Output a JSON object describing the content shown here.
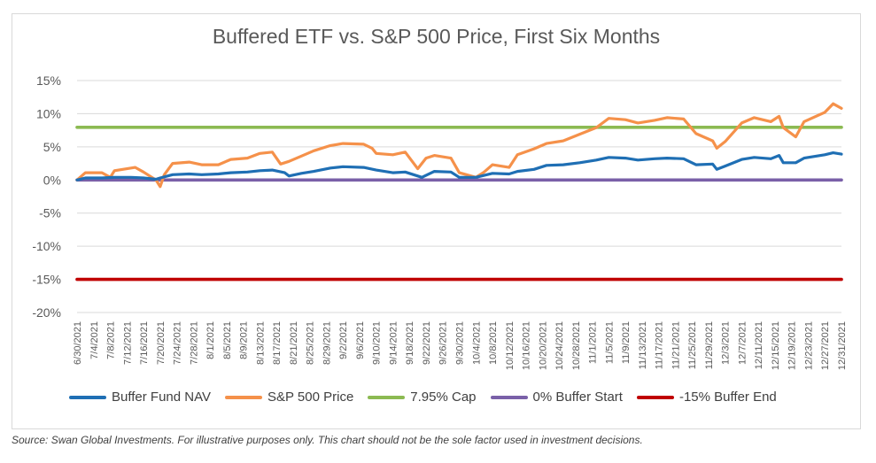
{
  "chart_data": {
    "type": "line",
    "title": "Buffered ETF vs. S&P 500 Price, First Six Months",
    "ylim": [
      -20,
      15
    ],
    "yticks": [
      "15%",
      "10%",
      "5%",
      "0%",
      "-5%",
      "-10%",
      "-15%",
      "-20%"
    ],
    "ytick_values": [
      15,
      10,
      5,
      0,
      -5,
      -10,
      -15,
      -20
    ],
    "x_start": "2021-06-30",
    "x_end": "2021-12-31",
    "xticks": [
      "6/30/2021",
      "7/4/2021",
      "7/8/2021",
      "7/12/2021",
      "7/16/2021",
      "7/20/2021",
      "7/24/2021",
      "7/28/2021",
      "8/1/2021",
      "8/5/2021",
      "8/9/2021",
      "8/13/2021",
      "8/17/2021",
      "8/21/2021",
      "8/25/2021",
      "8/29/2021",
      "9/2/2021",
      "9/6/2021",
      "9/10/2021",
      "9/14/2021",
      "9/18/2021",
      "9/22/2021",
      "9/26/2021",
      "9/30/2021",
      "10/4/2021",
      "10/8/2021",
      "10/12/2021",
      "10/16/2021",
      "10/20/2021",
      "10/24/2021",
      "10/28/2021",
      "11/1/2021",
      "11/5/2021",
      "11/9/2021",
      "11/13/2021",
      "11/17/2021",
      "11/21/2021",
      "11/25/2021",
      "11/29/2021",
      "12/3/2021",
      "12/7/2021",
      "12/11/2021",
      "12/15/2021",
      "12/19/2021",
      "12/23/2021",
      "12/27/2021",
      "12/31/2021"
    ],
    "grid": true,
    "legend_position": "bottom",
    "series": [
      {
        "name": "Buffer Fund NAV",
        "color": "#1f6fb4",
        "points": [
          [
            "2021-06-30",
            0
          ],
          [
            "2021-07-02",
            0.3
          ],
          [
            "2021-07-06",
            0.3
          ],
          [
            "2021-07-09",
            0.4
          ],
          [
            "2021-07-13",
            0.4
          ],
          [
            "2021-07-16",
            0.3
          ],
          [
            "2021-07-19",
            0.1
          ],
          [
            "2021-07-20",
            0.3
          ],
          [
            "2021-07-23",
            0.8
          ],
          [
            "2021-07-27",
            0.9
          ],
          [
            "2021-07-30",
            0.8
          ],
          [
            "2021-08-03",
            0.9
          ],
          [
            "2021-08-06",
            1.1
          ],
          [
            "2021-08-10",
            1.2
          ],
          [
            "2021-08-13",
            1.4
          ],
          [
            "2021-08-16",
            1.5
          ],
          [
            "2021-08-19",
            1.1
          ],
          [
            "2021-08-20",
            0.6
          ],
          [
            "2021-08-23",
            1.0
          ],
          [
            "2021-08-26",
            1.3
          ],
          [
            "2021-08-30",
            1.8
          ],
          [
            "2021-09-02",
            2.0
          ],
          [
            "2021-09-07",
            1.9
          ],
          [
            "2021-09-10",
            1.5
          ],
          [
            "2021-09-14",
            1.1
          ],
          [
            "2021-09-17",
            1.2
          ],
          [
            "2021-09-20",
            0.6
          ],
          [
            "2021-09-21",
            0.4
          ],
          [
            "2021-09-24",
            1.3
          ],
          [
            "2021-09-28",
            1.2
          ],
          [
            "2021-09-30",
            0.4
          ],
          [
            "2021-10-04",
            0.4
          ],
          [
            "2021-10-08",
            1.0
          ],
          [
            "2021-10-12",
            0.9
          ],
          [
            "2021-10-14",
            1.3
          ],
          [
            "2021-10-18",
            1.6
          ],
          [
            "2021-10-21",
            2.2
          ],
          [
            "2021-10-25",
            2.3
          ],
          [
            "2021-10-29",
            2.6
          ],
          [
            "2021-11-02",
            3.0
          ],
          [
            "2021-11-05",
            3.4
          ],
          [
            "2021-11-09",
            3.3
          ],
          [
            "2021-11-12",
            3.0
          ],
          [
            "2021-11-16",
            3.2
          ],
          [
            "2021-11-19",
            3.3
          ],
          [
            "2021-11-23",
            3.2
          ],
          [
            "2021-11-26",
            2.3
          ],
          [
            "2021-11-30",
            2.4
          ],
          [
            "2021-12-01",
            1.6
          ],
          [
            "2021-12-03",
            2.1
          ],
          [
            "2021-12-07",
            3.1
          ],
          [
            "2021-12-10",
            3.4
          ],
          [
            "2021-12-14",
            3.2
          ],
          [
            "2021-12-16",
            3.7
          ],
          [
            "2021-12-17",
            2.6
          ],
          [
            "2021-12-20",
            2.6
          ],
          [
            "2021-12-22",
            3.3
          ],
          [
            "2021-12-27",
            3.8
          ],
          [
            "2021-12-29",
            4.1
          ],
          [
            "2021-12-31",
            3.9
          ]
        ]
      },
      {
        "name": "S&P 500 Price",
        "color": "#f5914a",
        "points": [
          [
            "2021-06-30",
            0
          ],
          [
            "2021-07-02",
            1.1
          ],
          [
            "2021-07-06",
            1.1
          ],
          [
            "2021-07-08",
            0.4
          ],
          [
            "2021-07-09",
            1.4
          ],
          [
            "2021-07-12",
            1.7
          ],
          [
            "2021-07-14",
            1.9
          ],
          [
            "2021-07-16",
            1.2
          ],
          [
            "2021-07-19",
            0.0
          ],
          [
            "2021-07-20",
            -1.0
          ],
          [
            "2021-07-21",
            0.8
          ],
          [
            "2021-07-23",
            2.5
          ],
          [
            "2021-07-27",
            2.7
          ],
          [
            "2021-07-30",
            2.3
          ],
          [
            "2021-08-03",
            2.3
          ],
          [
            "2021-08-06",
            3.1
          ],
          [
            "2021-08-10",
            3.3
          ],
          [
            "2021-08-13",
            4.0
          ],
          [
            "2021-08-16",
            4.2
          ],
          [
            "2021-08-18",
            2.4
          ],
          [
            "2021-08-20",
            2.8
          ],
          [
            "2021-08-23",
            3.6
          ],
          [
            "2021-08-26",
            4.4
          ],
          [
            "2021-08-30",
            5.2
          ],
          [
            "2021-09-02",
            5.5
          ],
          [
            "2021-09-07",
            5.4
          ],
          [
            "2021-09-09",
            4.8
          ],
          [
            "2021-09-10",
            4.0
          ],
          [
            "2021-09-14",
            3.8
          ],
          [
            "2021-09-17",
            4.2
          ],
          [
            "2021-09-20",
            1.7
          ],
          [
            "2021-09-22",
            3.3
          ],
          [
            "2021-09-24",
            3.7
          ],
          [
            "2021-09-28",
            3.3
          ],
          [
            "2021-09-30",
            1.1
          ],
          [
            "2021-10-04",
            0.4
          ],
          [
            "2021-10-06",
            1.2
          ],
          [
            "2021-10-08",
            2.3
          ],
          [
            "2021-10-12",
            1.9
          ],
          [
            "2021-10-14",
            3.8
          ],
          [
            "2021-10-18",
            4.7
          ],
          [
            "2021-10-21",
            5.5
          ],
          [
            "2021-10-25",
            5.9
          ],
          [
            "2021-10-29",
            6.9
          ],
          [
            "2021-11-02",
            7.9
          ],
          [
            "2021-11-05",
            9.3
          ],
          [
            "2021-11-09",
            9.1
          ],
          [
            "2021-11-12",
            8.6
          ],
          [
            "2021-11-16",
            9.0
          ],
          [
            "2021-11-19",
            9.4
          ],
          [
            "2021-11-23",
            9.2
          ],
          [
            "2021-11-26",
            7.0
          ],
          [
            "2021-11-30",
            5.9
          ],
          [
            "2021-12-01",
            4.8
          ],
          [
            "2021-12-03",
            5.8
          ],
          [
            "2021-12-07",
            8.6
          ],
          [
            "2021-12-10",
            9.4
          ],
          [
            "2021-12-14",
            8.8
          ],
          [
            "2021-12-16",
            9.6
          ],
          [
            "2021-12-17",
            7.9
          ],
          [
            "2021-12-20",
            6.5
          ],
          [
            "2021-12-22",
            8.8
          ],
          [
            "2021-12-27",
            10.2
          ],
          [
            "2021-12-29",
            11.5
          ],
          [
            "2021-12-31",
            10.8
          ]
        ]
      },
      {
        "name": "7.95% Cap",
        "color": "#8cba52",
        "points": [
          [
            "2021-06-30",
            7.95
          ],
          [
            "2021-12-31",
            7.95
          ]
        ]
      },
      {
        "name": "0% Buffer Start",
        "color": "#7a60a8",
        "points": [
          [
            "2021-06-30",
            0
          ],
          [
            "2021-12-31",
            0
          ]
        ]
      },
      {
        "name": "-15% Buffer End",
        "color": "#c00000",
        "points": [
          [
            "2021-06-30",
            -15
          ],
          [
            "2021-12-31",
            -15
          ]
        ]
      }
    ]
  },
  "source_note": "Source: Swan Global Investments. For illustrative purposes only. This chart should not be the sole factor used in investment decisions."
}
